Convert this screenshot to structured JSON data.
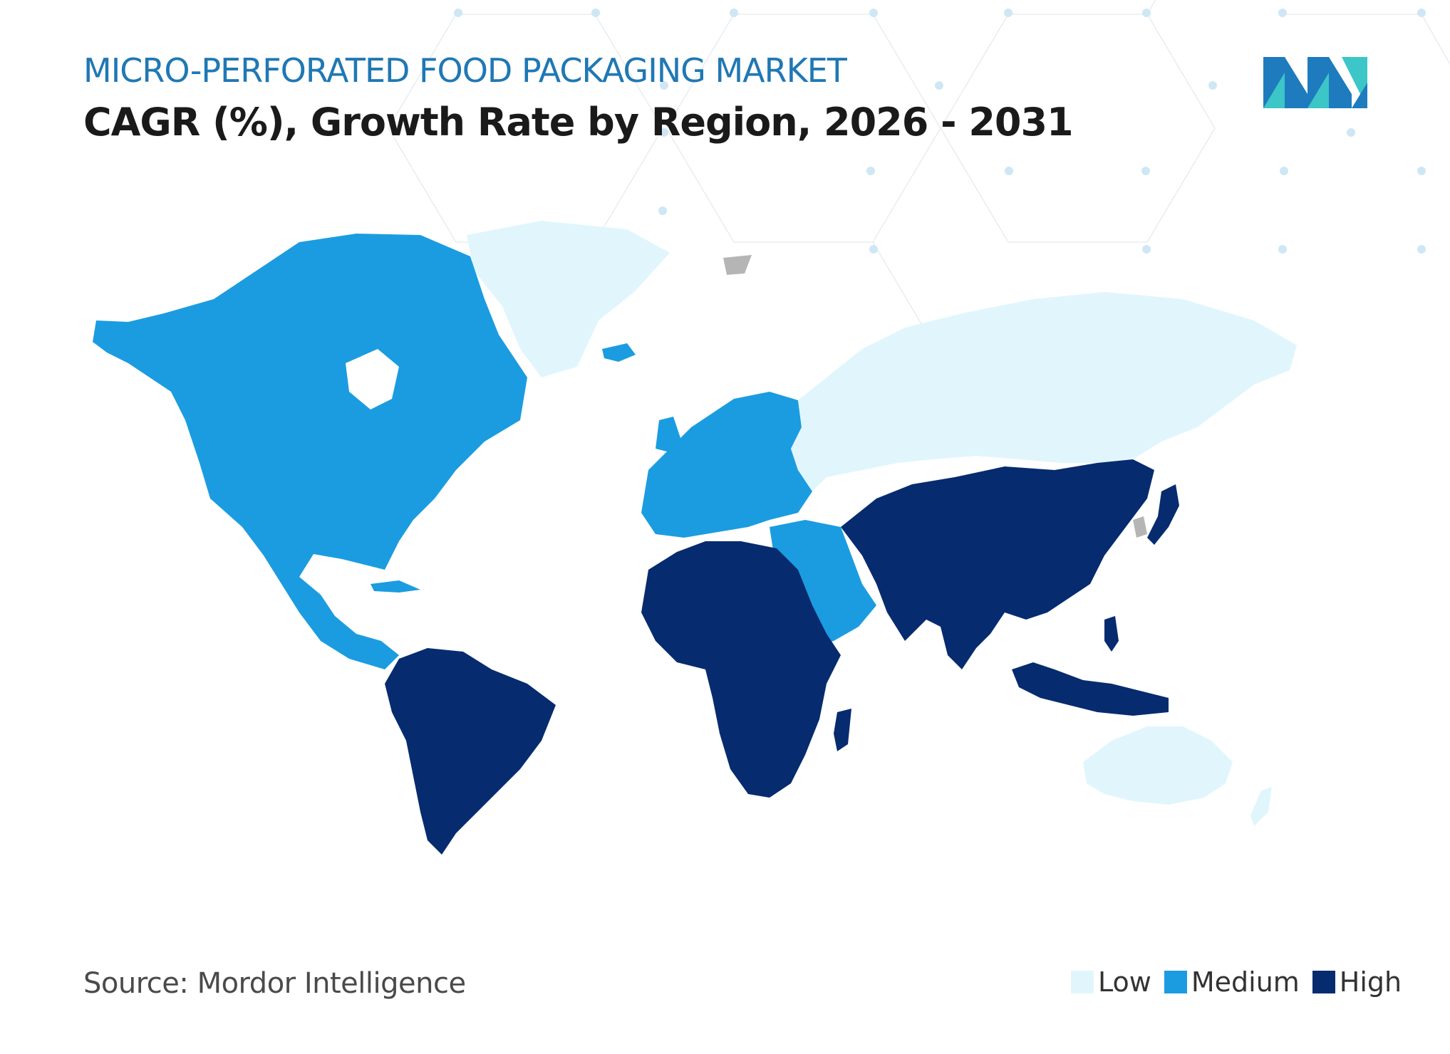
{
  "header": {
    "market_title": "MICRO-PERFORATED FOOD PACKAGING MARKET",
    "chart_title": "CAGR (%), Growth Rate by Region, 2026 - 2031"
  },
  "source": "Source: Mordor Intelligence",
  "legend": [
    {
      "label": "Low",
      "color": "#e0f6fc"
    },
    {
      "label": "Medium",
      "color": "#1b9ce0"
    },
    {
      "label": "High",
      "color": "#062b6f"
    }
  ],
  "colors": {
    "low": "#e0f6fc",
    "medium": "#1b9ce0",
    "high": "#062b6f",
    "no_data": "#b5b5b5",
    "logo_dark": "#1e7bbd",
    "logo_light": "#3cc6c8"
  },
  "regions": [
    {
      "name": "North America",
      "level": "medium"
    },
    {
      "name": "Europe",
      "level": "medium"
    },
    {
      "name": "Middle East",
      "level": "medium"
    },
    {
      "name": "South America",
      "level": "high"
    },
    {
      "name": "Africa",
      "level": "high"
    },
    {
      "name": "Asia-Pacific",
      "level": "high"
    },
    {
      "name": "Greenland",
      "level": "low"
    },
    {
      "name": "Russia",
      "level": "low"
    },
    {
      "name": "Australia",
      "level": "low"
    },
    {
      "name": "New Zealand",
      "level": "low"
    }
  ]
}
